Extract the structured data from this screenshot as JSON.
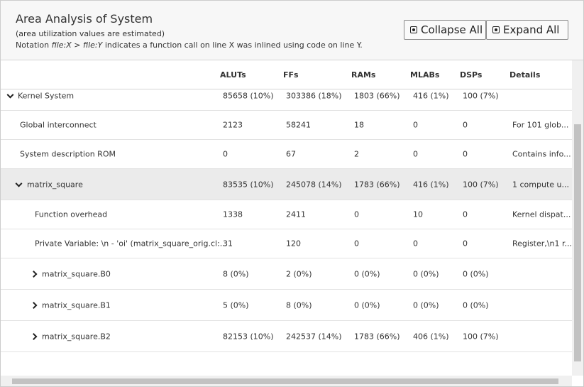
{
  "header": {
    "title": "Area Analysis of System",
    "subtitle": "(area utilization values are estimated)",
    "notation": [
      "Notation ",
      "file:X",
      " > ",
      "file:Y",
      " indicates a function call on line X was inlined using code on line Y."
    ]
  },
  "buttons": [
    "Collapse All",
    "Expand All"
  ],
  "table": {
    "columns": [
      "ALUTs",
      "FFs",
      "RAMs",
      "MLABs",
      "DSPs",
      "Details"
    ],
    "rows": [
      [
        "Kernel System",
        "85658 (10%)",
        "303386 (18%)",
        "1803 (66%)",
        "416 (1%)",
        "100 (7%)"
      ],
      [
        "Global interconnect",
        "2123",
        "58241",
        "18",
        "0",
        "0",
        "For 101 glob..."
      ],
      [
        "System description ROM",
        "0",
        "67",
        "2",
        "0",
        "0",
        "Contains info..."
      ],
      [
        "matrix_square",
        "83535 (10%)",
        "245078 (14%)",
        "1783 (66%)",
        "416 (1%)",
        "100 (7%)",
        "1 compute u..."
      ],
      [
        "Function overhead",
        "1338",
        "2411",
        "0",
        "10",
        "0",
        "Kernel dispat..."
      ],
      [
        "Private Variable: \\n - 'oi' (matrix_square_orig.cl:...",
        "31",
        "120",
        "0",
        "0",
        "0",
        "Register,\\n1 r..."
      ],
      [
        "matrix_square.B0",
        "8 (0%)",
        "2 (0%)",
        "0 (0%)",
        "0 (0%)",
        "0 (0%)"
      ],
      [
        "matrix_square.B1",
        "5 (0%)",
        "8 (0%)",
        "0 (0%)",
        "0 (0%)",
        "0 (0%)"
      ],
      [
        "matrix_square.B2",
        "82153 (10%)",
        "242537 (14%)",
        "1783 (66%)",
        "406 (1%)",
        "100 (7%)"
      ]
    ]
  }
}
